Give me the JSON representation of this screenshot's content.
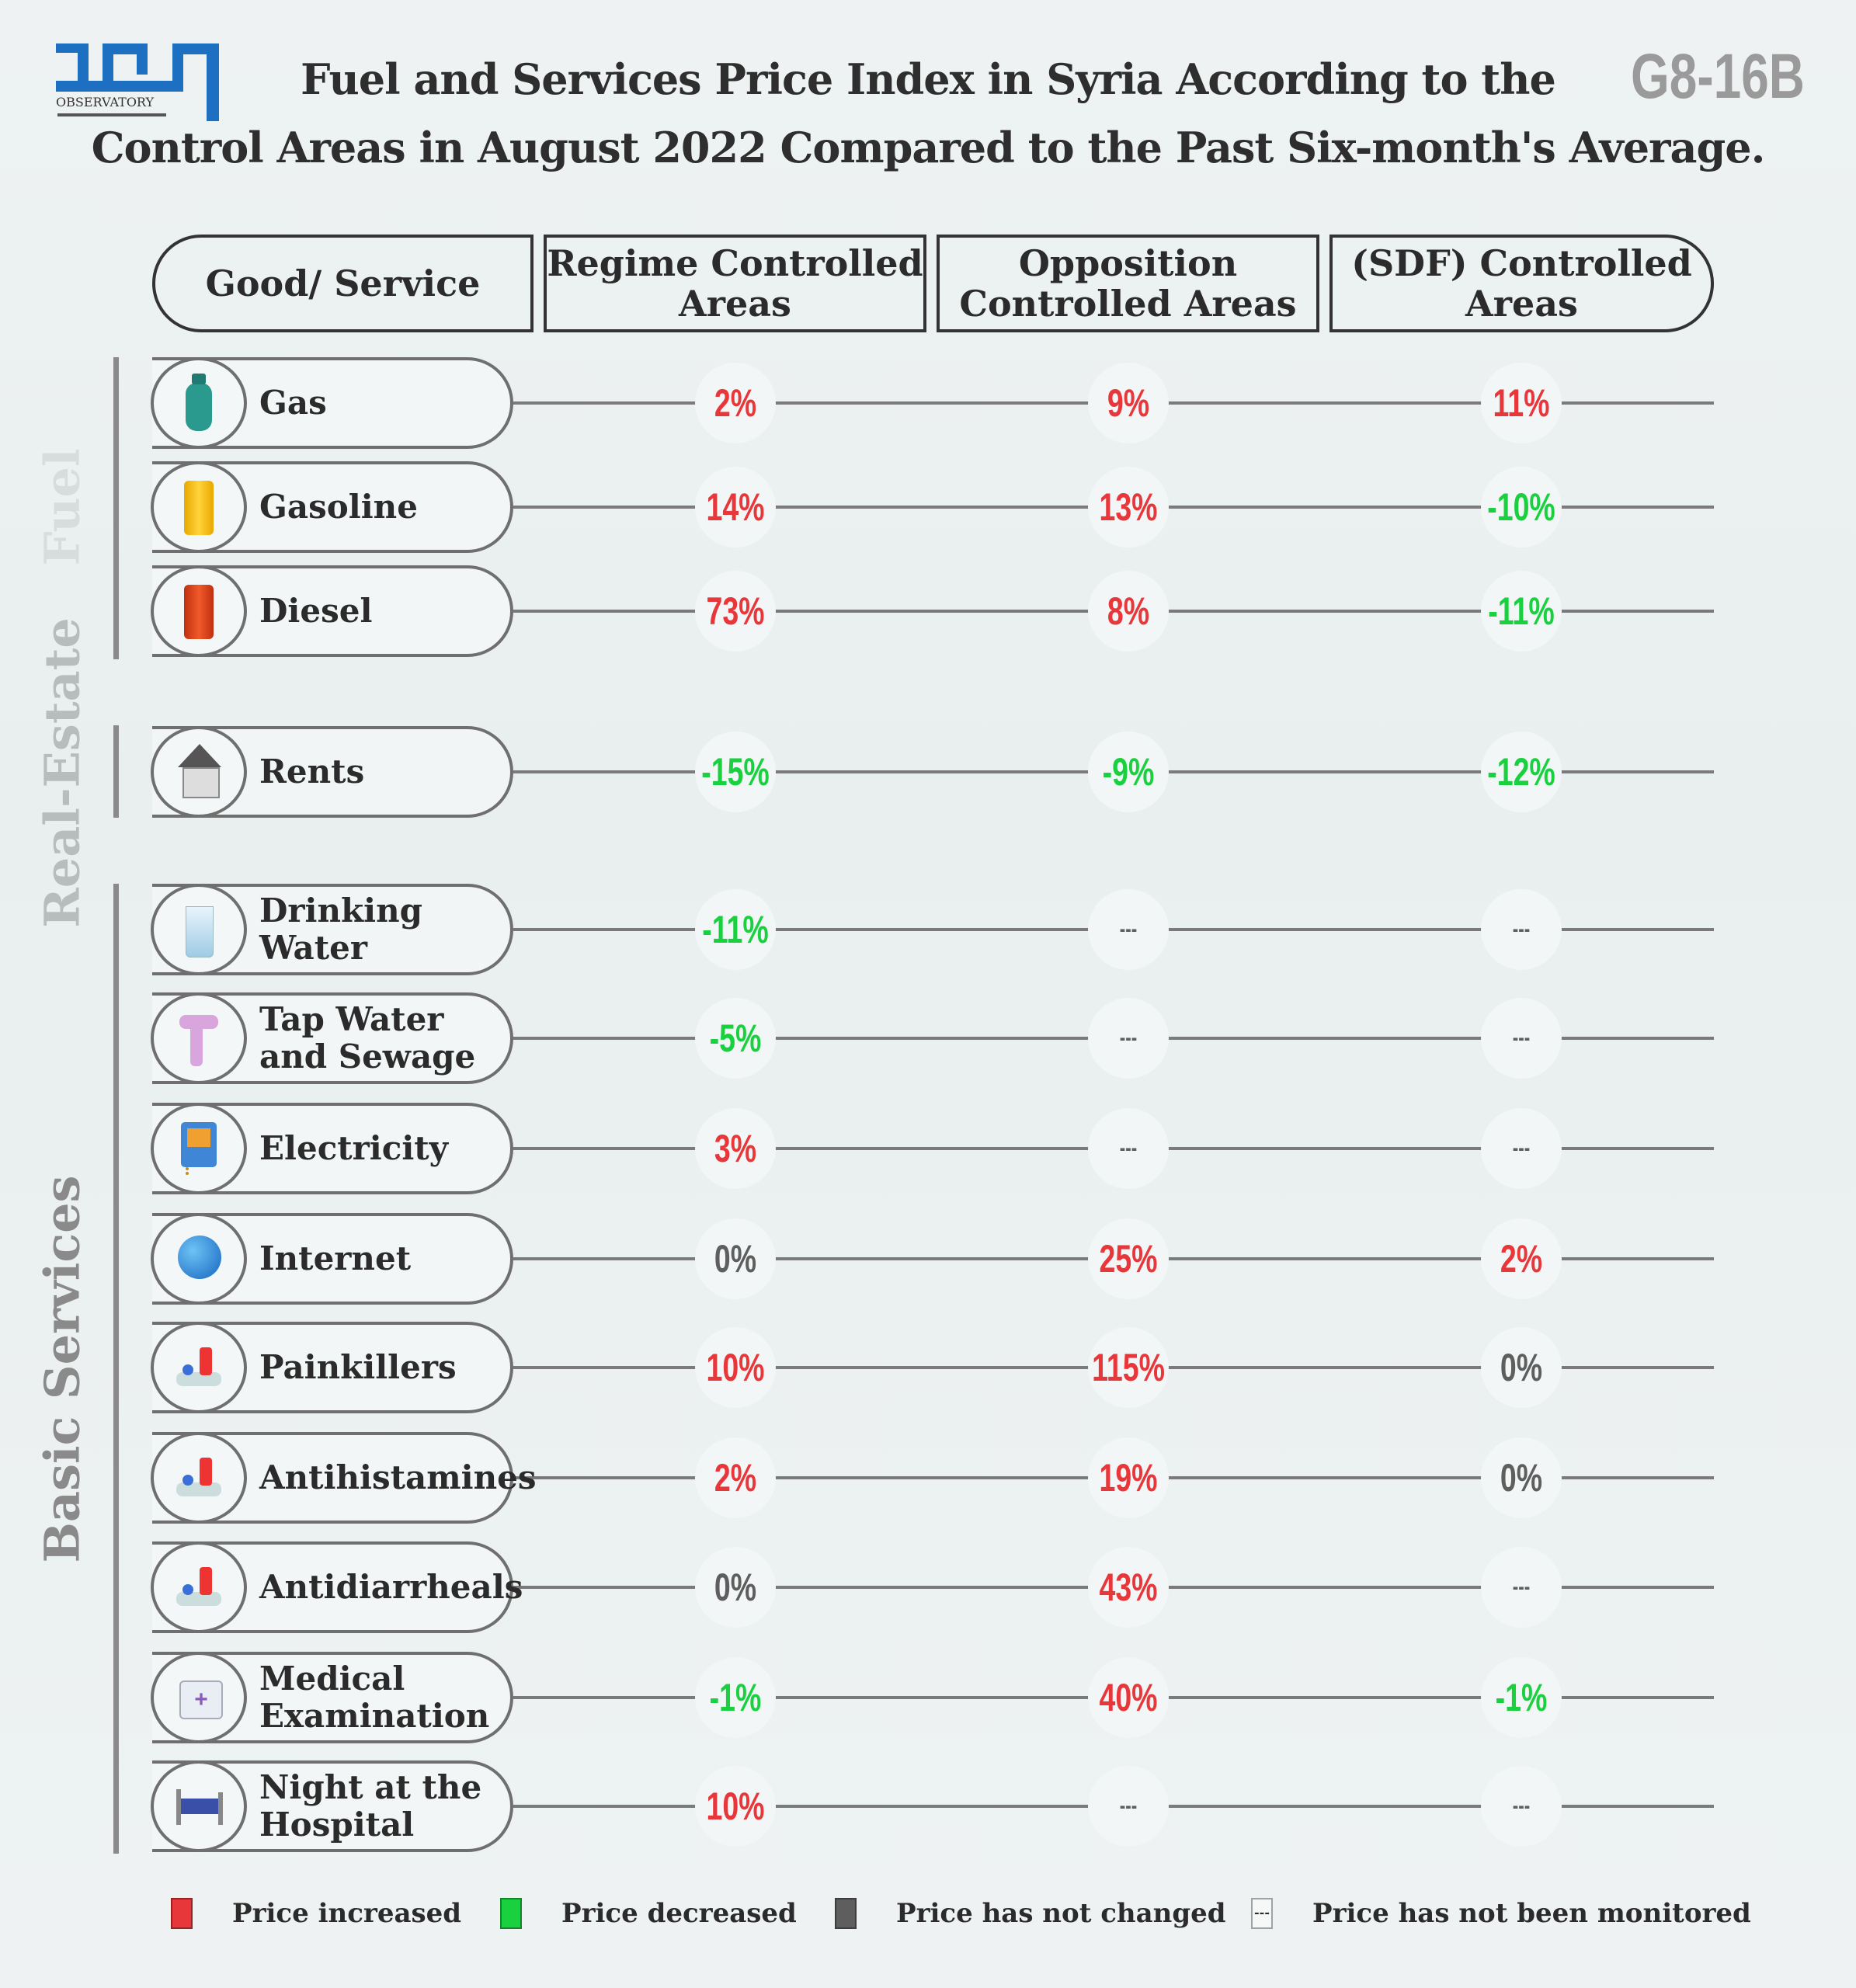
{
  "header": {
    "title_line1": "Fuel and Services Price Index in Syria According to the",
    "title_line2": "Control Areas in August 2022 Compared to the Past Six-month's Average.",
    "code": "G8-16B",
    "logo_text": "OBSERVATORY"
  },
  "columns": [
    "Good/ Service",
    "Regime Controlled Areas",
    "Opposition Controlled Areas",
    "(SDF) Controlled Areas"
  ],
  "sections": [
    {
      "label": "Fuel"
    },
    {
      "label": "Real-Estate"
    },
    {
      "label": "Basic Services"
    }
  ],
  "colors": {
    "increase": "#e8373b",
    "decrease": "#19d13f",
    "unchanged": "#5e5e5e",
    "not_monitored": "#5e5e5e",
    "logo_blue": "#1d6fc2"
  },
  "chart_data": {
    "type": "table",
    "title": "Fuel and Services Price Index in Syria According to the Control Areas in August 2022 Compared to the Past Six-month's Average.",
    "columns": [
      "Regime Controlled Areas",
      "Opposition Controlled Areas",
      "(SDF) Controlled Areas"
    ],
    "rows": [
      {
        "section": "Fuel",
        "name": "Gas",
        "icon": "gas-cylinder-icon",
        "values": [
          {
            "text": "2%",
            "status": "increase"
          },
          {
            "text": "9%",
            "status": "increase"
          },
          {
            "text": "11%",
            "status": "increase"
          }
        ]
      },
      {
        "section": "Fuel",
        "name": "Gasoline",
        "icon": "yellow-barrel-icon",
        "values": [
          {
            "text": "14%",
            "status": "increase"
          },
          {
            "text": "13%",
            "status": "increase"
          },
          {
            "text": "-10%",
            "status": "decrease"
          }
        ]
      },
      {
        "section": "Fuel",
        "name": "Diesel",
        "icon": "red-barrel-icon",
        "values": [
          {
            "text": "73%",
            "status": "increase"
          },
          {
            "text": "8%",
            "status": "increase"
          },
          {
            "text": "-11%",
            "status": "decrease"
          }
        ]
      },
      {
        "section": "Real-Estate",
        "name": "Rents",
        "icon": "house-icon",
        "values": [
          {
            "text": "-15%",
            "status": "decrease"
          },
          {
            "text": "-9%",
            "status": "decrease"
          },
          {
            "text": "-12%",
            "status": "decrease"
          }
        ]
      },
      {
        "section": "Basic Services",
        "name": "Drinking Water",
        "icon": "water-glass-icon",
        "values": [
          {
            "text": "-11%",
            "status": "decrease"
          },
          {
            "text": "---",
            "status": "not_monitored"
          },
          {
            "text": "---",
            "status": "not_monitored"
          }
        ]
      },
      {
        "section": "Basic Services",
        "name": "Tap Water and Sewage",
        "icon": "pipe-icon",
        "values": [
          {
            "text": "-5%",
            "status": "decrease"
          },
          {
            "text": "---",
            "status": "not_monitored"
          },
          {
            "text": "---",
            "status": "not_monitored"
          }
        ]
      },
      {
        "section": "Basic Services",
        "name": "Electricity",
        "icon": "electric-meter-icon",
        "values": [
          {
            "text": "3%",
            "status": "increase"
          },
          {
            "text": "---",
            "status": "not_monitored"
          },
          {
            "text": "---",
            "status": "not_monitored"
          }
        ]
      },
      {
        "section": "Basic Services",
        "name": "Internet",
        "icon": "globe-icon",
        "values": [
          {
            "text": "0%",
            "status": "unchanged"
          },
          {
            "text": "25%",
            "status": "increase"
          },
          {
            "text": "2%",
            "status": "increase"
          }
        ]
      },
      {
        "section": "Basic Services",
        "name": "Painkillers",
        "icon": "pills-icon",
        "values": [
          {
            "text": "10%",
            "status": "increase"
          },
          {
            "text": "115%",
            "status": "increase"
          },
          {
            "text": "0%",
            "status": "unchanged"
          }
        ]
      },
      {
        "section": "Basic Services",
        "name": "Antihistamines",
        "icon": "pills-icon",
        "values": [
          {
            "text": "2%",
            "status": "increase"
          },
          {
            "text": "19%",
            "status": "increase"
          },
          {
            "text": "0%",
            "status": "unchanged"
          }
        ]
      },
      {
        "section": "Basic Services",
        "name": "Antidiarrheals",
        "icon": "pills-icon",
        "values": [
          {
            "text": "0%",
            "status": "unchanged"
          },
          {
            "text": "43%",
            "status": "increase"
          },
          {
            "text": "---",
            "status": "not_monitored"
          }
        ]
      },
      {
        "section": "Basic Services",
        "name": "Medical Examination",
        "icon": "medical-kit-icon",
        "values": [
          {
            "text": "-1%",
            "status": "decrease"
          },
          {
            "text": "40%",
            "status": "increase"
          },
          {
            "text": "-1%",
            "status": "decrease"
          }
        ]
      },
      {
        "section": "Basic Services",
        "name": "Night at the Hospital",
        "icon": "hospital-bed-icon",
        "values": [
          {
            "text": "10%",
            "status": "increase"
          },
          {
            "text": "---",
            "status": "not_monitored"
          },
          {
            "text": "---",
            "status": "not_monitored"
          }
        ]
      }
    ]
  },
  "legend": [
    {
      "label": "Price increased",
      "status": "increase"
    },
    {
      "label": "Price decreased",
      "status": "decrease"
    },
    {
      "label": "Price has not changed",
      "status": "unchanged"
    },
    {
      "label": "Price has not been monitored",
      "status": "not_monitored"
    }
  ]
}
